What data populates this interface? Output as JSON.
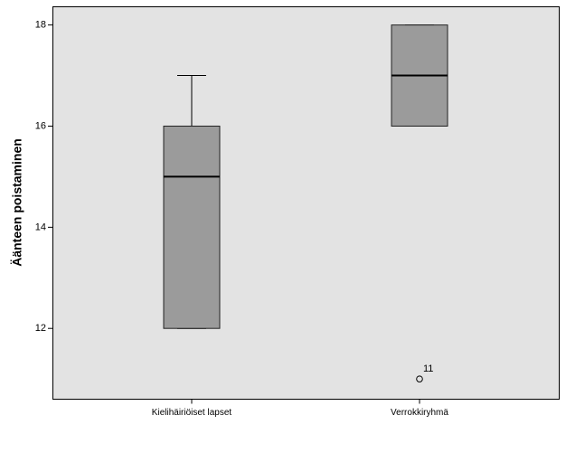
{
  "chart_data": {
    "type": "box",
    "y_label": "Äänteen poistaminen",
    "categories": [
      "Kielihäiriöiset lapset",
      "Verrokkiryhmä"
    ],
    "boxes": [
      {
        "min": 12,
        "q1": 12,
        "median": 15,
        "q3": 16,
        "max": 17
      },
      {
        "min": 16,
        "q1": 16,
        "median": 17,
        "q3": 18,
        "max": 18
      }
    ],
    "outliers": [
      [],
      [
        {
          "value": 11,
          "label": "11"
        }
      ]
    ],
    "color": "#9b9b9b",
    "ylim": [
      10.6,
      18.36
    ],
    "yticks": [
      12,
      14,
      16,
      18
    ]
  }
}
